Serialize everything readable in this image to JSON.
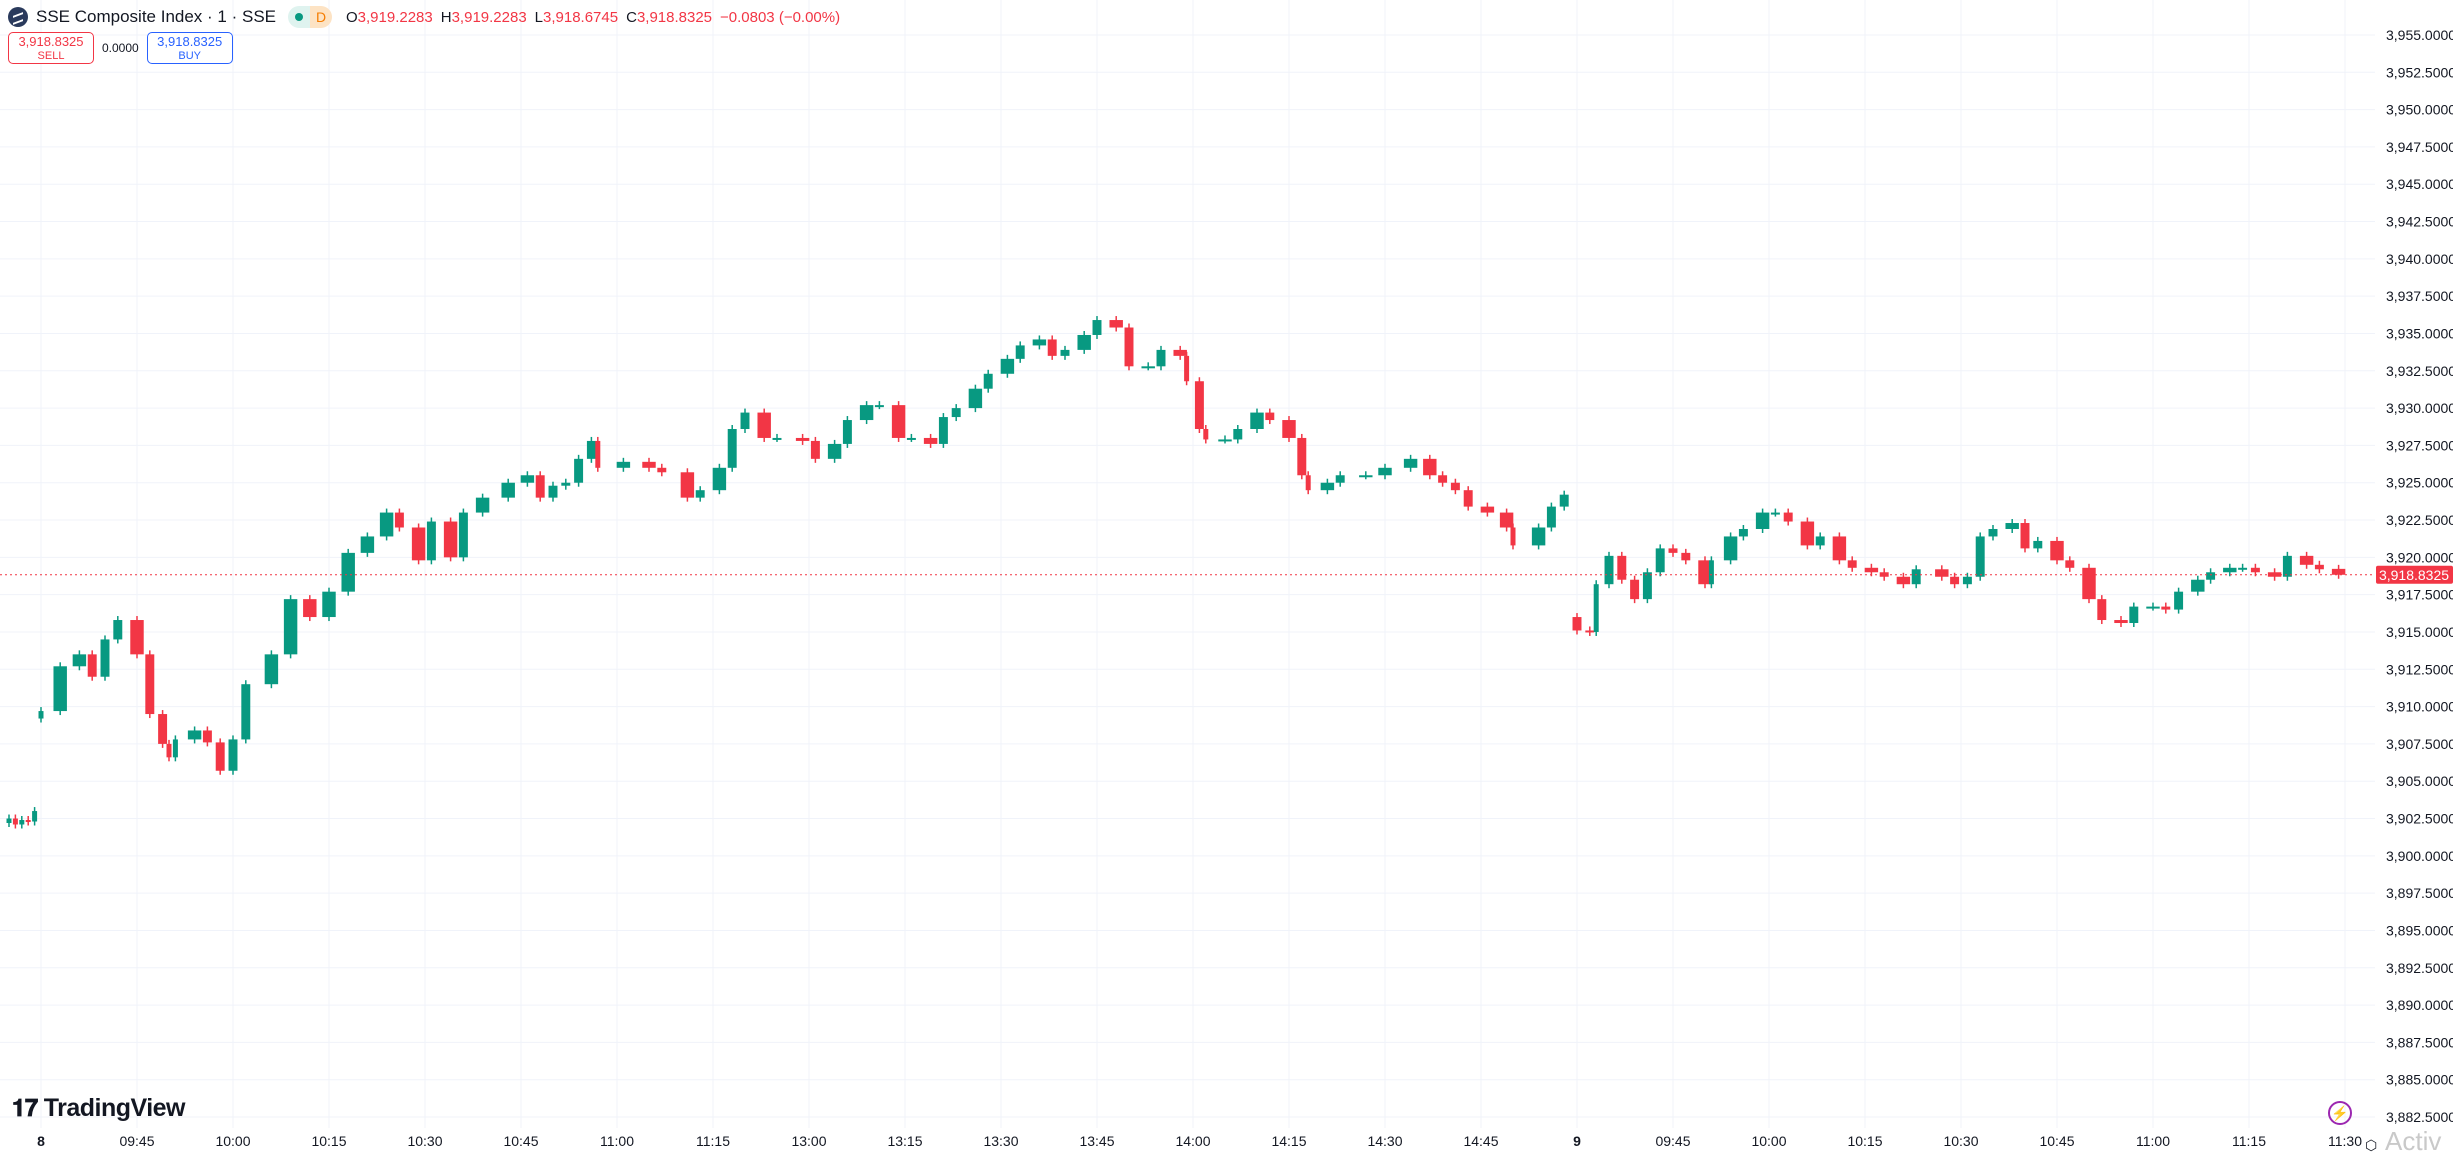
{
  "header": {
    "symbol_title": "SSE Composite Index · 1 · SSE",
    "market_status_icon": "green-dot-icon",
    "data_badge": "D",
    "ohlc": {
      "o_label": "O",
      "o": "3,919.2283",
      "h_label": "H",
      "h": "3,919.2283",
      "l_label": "L",
      "l": "3,918.6745",
      "c_label": "C",
      "c": "3,918.8325",
      "change": "−0.0803 (−0.00%)"
    }
  },
  "trade": {
    "sell_price": "3,918.8325",
    "sell_label": "SELL",
    "spread": "0.0000",
    "buy_price": "3,918.8325",
    "buy_label": "BUY"
  },
  "branding": {
    "logo_text": "TradingView",
    "logo_mark": "17"
  },
  "watermark": "Activ",
  "colors": {
    "up": "#089981",
    "down": "#f23645",
    "grid": "#f0f3fa",
    "last_price": "#f23645"
  },
  "chart_data": {
    "type": "candlestick",
    "interval": "1",
    "ylim": [
      3882.5,
      3955
    ],
    "y_ticks": [
      "3,955.0000",
      "3,952.5000",
      "3,950.0000",
      "3,947.5000",
      "3,945.0000",
      "3,942.5000",
      "3,940.0000",
      "3,937.5000",
      "3,935.0000",
      "3,932.5000",
      "3,930.0000",
      "3,927.5000",
      "3,925.0000",
      "3,922.5000",
      "3,920.0000",
      "3,917.5000",
      "3,915.0000",
      "3,912.5000",
      "3,910.0000",
      "3,907.5000",
      "3,905.0000",
      "3,902.5000",
      "3,900.0000",
      "3,897.5000",
      "3,895.0000",
      "3,892.5000",
      "3,890.0000",
      "3,887.5000",
      "3,885.0000",
      "3,882.5000"
    ],
    "x_ticks": [
      {
        "day": 8,
        "time": "09:30",
        "label": "8"
      },
      {
        "day": 8,
        "time": "09:45",
        "label": "09:45"
      },
      {
        "day": 8,
        "time": "10:00",
        "label": "10:00"
      },
      {
        "day": 8,
        "time": "10:15",
        "label": "10:15"
      },
      {
        "day": 8,
        "time": "10:30",
        "label": "10:30"
      },
      {
        "day": 8,
        "time": "10:45",
        "label": "10:45"
      },
      {
        "day": 8,
        "time": "11:00",
        "label": "11:00"
      },
      {
        "day": 8,
        "time": "11:15",
        "label": "11:15"
      },
      {
        "day": 8,
        "time": "13:00",
        "label": "13:00"
      },
      {
        "day": 8,
        "time": "13:15",
        "label": "13:15"
      },
      {
        "day": 8,
        "time": "13:30",
        "label": "13:30"
      },
      {
        "day": 8,
        "time": "13:45",
        "label": "13:45"
      },
      {
        "day": 8,
        "time": "14:00",
        "label": "14:00"
      },
      {
        "day": 8,
        "time": "14:15",
        "label": "14:15"
      },
      {
        "day": 8,
        "time": "14:30",
        "label": "14:30"
      },
      {
        "day": 8,
        "time": "14:45",
        "label": "14:45"
      },
      {
        "day": 9,
        "time": "09:30",
        "label": "9"
      },
      {
        "day": 9,
        "time": "09:45",
        "label": "09:45"
      },
      {
        "day": 9,
        "time": "10:00",
        "label": "10:00"
      },
      {
        "day": 9,
        "time": "10:15",
        "label": "10:15"
      },
      {
        "day": 9,
        "time": "10:30",
        "label": "10:30"
      },
      {
        "day": 9,
        "time": "10:45",
        "label": "10:45"
      },
      {
        "day": 9,
        "time": "11:00",
        "label": "11:00"
      },
      {
        "day": 9,
        "time": "11:15",
        "label": "11:15"
      },
      {
        "day": 9,
        "time": "11:30",
        "label": "11:30"
      }
    ],
    "last_price": 3918.8325,
    "last_price_label": "3,918.8325",
    "grid": true,
    "candle_columns": [
      "day",
      "time",
      "open",
      "close"
    ],
    "candles": [
      [
        7,
        "14:55",
        3902.2,
        3902.5
      ],
      [
        7,
        "14:56",
        3902.5,
        3902.1
      ],
      [
        7,
        "14:57",
        3902.1,
        3902.4
      ],
      [
        7,
        "14:58",
        3902.4,
        3902.3
      ],
      [
        7,
        "14:59",
        3902.3,
        3903.0
      ],
      [
        8,
        "09:30",
        3909.2,
        3909.7
      ],
      [
        8,
        "09:33",
        3909.7,
        3912.7
      ],
      [
        8,
        "09:36",
        3912.7,
        3913.5
      ],
      [
        8,
        "09:38",
        3913.5,
        3912.0
      ],
      [
        8,
        "09:40",
        3912.0,
        3914.5
      ],
      [
        8,
        "09:42",
        3914.5,
        3915.8
      ],
      [
        8,
        "09:45",
        3915.8,
        3913.5
      ],
      [
        8,
        "09:47",
        3913.5,
        3909.5
      ],
      [
        8,
        "09:49",
        3909.5,
        3907.5
      ],
      [
        8,
        "09:50",
        3907.5,
        3906.6
      ],
      [
        8,
        "09:51",
        3906.6,
        3907.8
      ],
      [
        8,
        "09:54",
        3907.8,
        3908.4
      ],
      [
        8,
        "09:56",
        3908.4,
        3907.6
      ],
      [
        8,
        "09:58",
        3907.6,
        3905.7
      ],
      [
        8,
        "10:00",
        3905.7,
        3907.8
      ],
      [
        8,
        "10:02",
        3907.8,
        3911.5
      ],
      [
        8,
        "10:06",
        3911.5,
        3913.5
      ],
      [
        8,
        "10:09",
        3913.5,
        3917.2
      ],
      [
        8,
        "10:12",
        3917.2,
        3916.0
      ],
      [
        8,
        "10:15",
        3916.0,
        3917.7
      ],
      [
        8,
        "10:18",
        3917.7,
        3920.3
      ],
      [
        8,
        "10:21",
        3920.3,
        3921.4
      ],
      [
        8,
        "10:24",
        3921.4,
        3923.0
      ],
      [
        8,
        "10:26",
        3923.0,
        3922.0
      ],
      [
        8,
        "10:29",
        3922.0,
        3919.8
      ],
      [
        8,
        "10:31",
        3919.8,
        3922.4
      ],
      [
        8,
        "10:34",
        3922.4,
        3920.0
      ],
      [
        8,
        "10:36",
        3920.0,
        3923.0
      ],
      [
        8,
        "10:39",
        3923.0,
        3924.0
      ],
      [
        8,
        "10:43",
        3924.0,
        3925.0
      ],
      [
        8,
        "10:46",
        3925.0,
        3925.5
      ],
      [
        8,
        "10:48",
        3925.5,
        3924.0
      ],
      [
        8,
        "10:50",
        3924.0,
        3924.8
      ],
      [
        8,
        "10:52",
        3924.8,
        3925.0
      ],
      [
        8,
        "10:54",
        3925.0,
        3926.6
      ],
      [
        8,
        "10:56",
        3926.6,
        3927.8
      ],
      [
        8,
        "10:57",
        3927.8,
        3926.0
      ],
      [
        8,
        "11:01",
        3926.0,
        3926.4
      ],
      [
        8,
        "11:05",
        3926.4,
        3926.0
      ],
      [
        8,
        "11:07",
        3926.0,
        3925.7
      ],
      [
        8,
        "11:11",
        3925.7,
        3924.0
      ],
      [
        8,
        "11:13",
        3924.0,
        3924.5
      ],
      [
        8,
        "11:16",
        3924.5,
        3926.0
      ],
      [
        8,
        "11:18",
        3926.0,
        3928.6
      ],
      [
        8,
        "11:20",
        3928.6,
        3929.7
      ],
      [
        8,
        "11:23",
        3929.7,
        3928.0
      ],
      [
        8,
        "11:25",
        3928.0,
        3928.0
      ],
      [
        8,
        "11:29",
        3928.0,
        3927.8
      ],
      [
        8,
        "13:01",
        3927.8,
        3926.6
      ],
      [
        8,
        "13:04",
        3926.6,
        3927.6
      ],
      [
        8,
        "13:06",
        3927.6,
        3929.2
      ],
      [
        8,
        "13:09",
        3929.2,
        3930.2
      ],
      [
        8,
        "13:11",
        3930.2,
        3930.2
      ],
      [
        8,
        "13:14",
        3930.2,
        3928.0
      ],
      [
        8,
        "13:16",
        3928.0,
        3928.0
      ],
      [
        8,
        "13:19",
        3928.0,
        3927.6
      ],
      [
        8,
        "13:21",
        3927.6,
        3929.4
      ],
      [
        8,
        "13:23",
        3929.4,
        3930.0
      ],
      [
        8,
        "13:26",
        3930.0,
        3931.3
      ],
      [
        8,
        "13:28",
        3931.3,
        3932.3
      ],
      [
        8,
        "13:31",
        3932.3,
        3933.3
      ],
      [
        8,
        "13:33",
        3933.3,
        3934.2
      ],
      [
        8,
        "13:36",
        3934.2,
        3934.6
      ],
      [
        8,
        "13:38",
        3934.6,
        3933.5
      ],
      [
        8,
        "13:40",
        3933.5,
        3933.9
      ],
      [
        8,
        "13:43",
        3933.9,
        3934.9
      ],
      [
        8,
        "13:45",
        3934.9,
        3935.9
      ],
      [
        8,
        "13:48",
        3935.9,
        3935.4
      ],
      [
        8,
        "13:50",
        3935.4,
        3932.8
      ],
      [
        8,
        "13:53",
        3932.8,
        3932.8
      ],
      [
        8,
        "13:55",
        3932.8,
        3933.9
      ],
      [
        8,
        "13:58",
        3933.9,
        3933.5
      ],
      [
        8,
        "13:59",
        3933.5,
        3931.8
      ],
      [
        8,
        "14:01",
        3931.8,
        3928.6
      ],
      [
        8,
        "14:02",
        3928.6,
        3927.9
      ],
      [
        8,
        "14:05",
        3927.9,
        3927.9
      ],
      [
        8,
        "14:07",
        3927.9,
        3928.6
      ],
      [
        8,
        "14:10",
        3928.6,
        3929.7
      ],
      [
        8,
        "14:12",
        3929.7,
        3929.2
      ],
      [
        8,
        "14:15",
        3929.2,
        3928.0
      ],
      [
        8,
        "14:17",
        3928.0,
        3925.5
      ],
      [
        8,
        "14:18",
        3925.5,
        3924.5
      ],
      [
        8,
        "14:21",
        3924.5,
        3925.0
      ],
      [
        8,
        "14:23",
        3925.0,
        3925.5
      ],
      [
        8,
        "14:27",
        3925.5,
        3925.5
      ],
      [
        8,
        "14:30",
        3925.5,
        3926.0
      ],
      [
        8,
        "14:34",
        3926.0,
        3926.6
      ],
      [
        8,
        "14:37",
        3926.6,
        3925.5
      ],
      [
        8,
        "14:39",
        3925.5,
        3925.0
      ],
      [
        8,
        "14:41",
        3925.0,
        3924.5
      ],
      [
        8,
        "14:43",
        3924.5,
        3923.4
      ],
      [
        8,
        "14:46",
        3923.4,
        3923.0
      ],
      [
        8,
        "14:49",
        3923.0,
        3922.0
      ],
      [
        8,
        "14:50",
        3922.0,
        3920.8
      ],
      [
        8,
        "14:54",
        3920.8,
        3922.0
      ],
      [
        8,
        "14:56",
        3922.0,
        3923.4
      ],
      [
        8,
        "14:58",
        3923.4,
        3924.2
      ],
      [
        9,
        "09:30",
        3916.0,
        3915.1
      ],
      [
        9,
        "09:32",
        3915.1,
        3915.0
      ],
      [
        9,
        "09:33",
        3915.0,
        3918.2
      ],
      [
        9,
        "09:35",
        3918.2,
        3920.1
      ],
      [
        9,
        "09:37",
        3920.1,
        3918.5
      ],
      [
        9,
        "09:39",
        3918.5,
        3917.2
      ],
      [
        9,
        "09:41",
        3917.2,
        3919.0
      ],
      [
        9,
        "09:43",
        3919.0,
        3920.6
      ],
      [
        9,
        "09:45",
        3920.6,
        3920.3
      ],
      [
        9,
        "09:47",
        3920.3,
        3919.8
      ],
      [
        9,
        "09:50",
        3919.8,
        3918.2
      ],
      [
        9,
        "09:51",
        3918.2,
        3919.8
      ],
      [
        9,
        "09:54",
        3919.8,
        3921.4
      ],
      [
        9,
        "09:56",
        3921.4,
        3921.9
      ],
      [
        9,
        "09:59",
        3921.9,
        3923.0
      ],
      [
        9,
        "10:01",
        3923.0,
        3923.0
      ],
      [
        9,
        "10:03",
        3923.0,
        3922.4
      ],
      [
        9,
        "10:06",
        3922.4,
        3920.8
      ],
      [
        9,
        "10:08",
        3920.8,
        3921.4
      ],
      [
        9,
        "10:11",
        3921.4,
        3919.8
      ],
      [
        9,
        "10:13",
        3919.8,
        3919.3
      ],
      [
        9,
        "10:16",
        3919.3,
        3919.0
      ],
      [
        9,
        "10:18",
        3919.0,
        3918.7
      ],
      [
        9,
        "10:21",
        3918.7,
        3918.2
      ],
      [
        9,
        "10:23",
        3918.2,
        3919.2
      ],
      [
        9,
        "10:27",
        3919.2,
        3918.7
      ],
      [
        9,
        "10:29",
        3918.7,
        3918.2
      ],
      [
        9,
        "10:31",
        3918.2,
        3918.7
      ],
      [
        9,
        "10:33",
        3918.7,
        3921.4
      ],
      [
        9,
        "10:35",
        3921.4,
        3921.9
      ],
      [
        9,
        "10:38",
        3921.9,
        3922.3
      ],
      [
        9,
        "10:40",
        3922.3,
        3920.6
      ],
      [
        9,
        "10:42",
        3920.6,
        3921.1
      ],
      [
        9,
        "10:45",
        3921.1,
        3919.8
      ],
      [
        9,
        "10:47",
        3919.8,
        3919.3
      ],
      [
        9,
        "10:50",
        3919.3,
        3917.2
      ],
      [
        9,
        "10:52",
        3917.2,
        3915.8
      ],
      [
        9,
        "10:55",
        3915.8,
        3915.6
      ],
      [
        9,
        "10:57",
        3915.6,
        3916.7
      ],
      [
        9,
        "11:00",
        3916.7,
        3916.7
      ],
      [
        9,
        "11:02",
        3916.7,
        3916.5
      ],
      [
        9,
        "11:04",
        3916.5,
        3917.7
      ],
      [
        9,
        "11:07",
        3917.7,
        3918.5
      ],
      [
        9,
        "11:09",
        3918.5,
        3919.0
      ],
      [
        9,
        "11:12",
        3919.0,
        3919.3
      ],
      [
        9,
        "11:14",
        3919.3,
        3919.3
      ],
      [
        9,
        "11:16",
        3919.3,
        3919.0
      ],
      [
        9,
        "11:19",
        3919.0,
        3918.7
      ],
      [
        9,
        "11:21",
        3918.7,
        3920.1
      ],
      [
        9,
        "11:24",
        3920.1,
        3919.5
      ],
      [
        9,
        "11:26",
        3919.5,
        3919.2
      ],
      [
        9,
        "11:29",
        3919.2283,
        3918.8325
      ]
    ]
  }
}
